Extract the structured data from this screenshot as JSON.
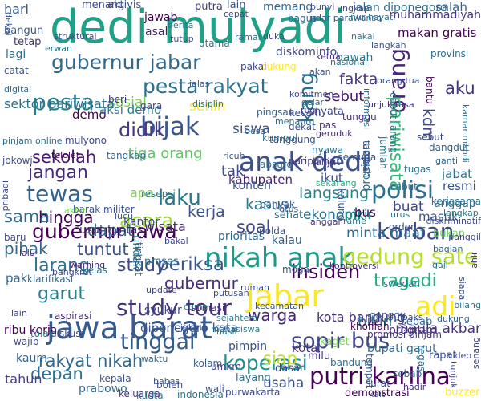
{
  "words": [
    {
      "text": "dedi mulyadi",
      "color": "#1fa187"
    },
    {
      "text": "jawa barat",
      "color": "#365c8d"
    },
    {
      "text": "nikah anak",
      "color": "#1f9a8a"
    },
    {
      "text": "gubernur jabar",
      "color": "#31688e"
    },
    {
      "text": "pesta rakyat",
      "color": "#2c728e"
    },
    {
      "text": "anak dedi",
      "color": "#3b528b"
    },
    {
      "text": "gubernur jawa",
      "color": "#440154"
    },
    {
      "text": "study tour",
      "color": "#46337e"
    },
    {
      "text": "jabar",
      "color": "#fde725"
    },
    {
      "text": "orang",
      "color": "#482677"
    },
    {
      "text": "tewas",
      "color": "#33638d"
    },
    {
      "text": "pesta",
      "color": "#277f8e"
    },
    {
      "text": "bijak",
      "color": "#38588c"
    },
    {
      "text": "didik",
      "color": "#453781"
    },
    {
      "text": "polisi",
      "color": "#2d708e"
    },
    {
      "text": "gedung sate",
      "color": "#b5de2b"
    },
    {
      "text": "korban",
      "color": "#3e4989"
    },
    {
      "text": "pariwisata",
      "color": "#35b779"
    },
    {
      "text": "sopir bus",
      "color": "#3f4788"
    },
    {
      "text": "putri karlina",
      "color": "#440154"
    },
    {
      "text": "koperasi",
      "color": "#20928c"
    },
    {
      "text": "rakyat nikah",
      "color": "#31688e"
    },
    {
      "text": "tinggal",
      "color": "#365c8d"
    },
    {
      "text": "insiden",
      "color": "#440154"
    },
    {
      "text": "tragedi",
      "color": "#26ad81"
    },
    {
      "text": "adi",
      "color": "#fde725"
    },
    {
      "text": "laku",
      "color": "#2a788e"
    },
    {
      "text": "periksa",
      "color": "#39558c"
    },
    {
      "text": "larang",
      "color": "#2c728e"
    },
    {
      "text": "study",
      "color": "#3e4989"
    },
    {
      "text": "tuntut",
      "color": "#3b528b"
    },
    {
      "text": "gubernur",
      "color": "#472d7b"
    },
    {
      "text": "garut",
      "color": "#277f8e"
    },
    {
      "text": "kang",
      "color": "#2d708e"
    },
    {
      "text": "fakta",
      "color": "#453781"
    },
    {
      "text": "aku",
      "color": "#46337e"
    },
    {
      "text": "sekolah",
      "color": "#481a6c"
    },
    {
      "text": "jangan",
      "color": "#482878"
    },
    {
      "text": "tiga orang",
      "color": "#5ec962"
    },
    {
      "text": "acara",
      "color": "#a0da39"
    },
    {
      "text": "hingga",
      "color": "#440154"
    },
    {
      "text": "dapat",
      "color": "#33638d"
    },
    {
      "text": "langsung",
      "color": "#26828e"
    },
    {
      "text": "kasus",
      "color": "#2a788e"
    },
    {
      "text": "kerja",
      "color": "#3b528b"
    },
    {
      "text": "sama",
      "color": "#31688e"
    },
    {
      "text": "siap",
      "color": "#c2df23"
    },
    {
      "text": "warga",
      "color": "#482475"
    },
    {
      "text": "soal",
      "color": "#3f4788"
    },
    {
      "text": "senin",
      "color": "#fde725"
    },
    {
      "text": "tak",
      "color": "#3e4a89"
    },
    {
      "text": "siswa",
      "color": "#39558c"
    },
    {
      "text": "ekonomi",
      "color": "#2c728e"
    },
    {
      "text": "minta maaf",
      "color": "#2e6e8e"
    },
    {
      "text": "kota bandung",
      "color": "#472d7b"
    },
    {
      "text": "usaha",
      "color": "#3b528b"
    },
    {
      "text": "maula akbar",
      "color": "#46337e"
    },
    {
      "text": "sosial",
      "color": "#7ad151"
    },
    {
      "text": "demo",
      "color": "#440154"
    },
    {
      "text": "apa",
      "color": "#7ad151"
    },
    {
      "text": "pikir",
      "color": "#20928c"
    },
    {
      "text": "sebut",
      "color": "#481a6c"
    },
    {
      "text": "kdm",
      "color": "#3e4989"
    },
    {
      "text": "bikin",
      "color": "#2d708e"
    },
    {
      "text": "depan",
      "color": "#2d708e"
    },
    {
      "text": "hari",
      "color": "#365c8d"
    },
    {
      "text": "masuk",
      "color": "#39568c"
    },
    {
      "text": "wisata",
      "color": "#482878"
    },
    {
      "text": "pihak",
      "color": "#31688e"
    },
    {
      "text": "aksi demo",
      "color": "#277f8e"
    },
    {
      "text": "bus",
      "color": "#440154"
    },
    {
      "text": "buat",
      "color": "#3e4989"
    },
    {
      "text": "makan gratis",
      "color": "#440154"
    },
    {
      "text": "kabupaten",
      "color": "#482475"
    },
    {
      "text": "bupati garut",
      "color": "#31688e"
    },
    {
      "text": "jabat",
      "color": "#2c728e"
    },
    {
      "text": "resmi",
      "color": "#39558c"
    },
    {
      "text": "presiden",
      "color": "#2e6e8e"
    },
    {
      "text": "ribu kerja",
      "color": "#440154"
    },
    {
      "text": "diponegoro kota",
      "color": "#3b528b"
    },
    {
      "text": "prioritas",
      "color": "#31688e"
    },
    {
      "text": "syukur",
      "color": "#3f4788"
    },
    {
      "text": "pak",
      "color": "#31688e"
    },
    {
      "text": "tahun",
      "color": "#433e85"
    },
    {
      "text": "kaum",
      "color": "#33638d"
    },
    {
      "text": "prabowo",
      "color": "#31688e"
    },
    {
      "text": "ikut",
      "color": "#3e4989"
    },
    {
      "text": "kota",
      "color": "#46337e"
    },
    {
      "text": "tindak",
      "color": "#2a788e"
    },
    {
      "text": "konten",
      "color": "#39568c"
    },
    {
      "text": "kalau",
      "color": "#33638d"
    },
    {
      "text": "pimpin",
      "color": "#39558c"
    },
    {
      "text": "program",
      "color": "#46337e"
    },
    {
      "text": "kantor",
      "color": "#3f4788"
    },
    {
      "text": "proses",
      "color": "#2c728e"
    },
    {
      "text": "jalan diponegoro",
      "color": "#2c728e"
    },
    {
      "text": "muhammadiyah",
      "color": "#46337e"
    },
    {
      "text": "sektor pariwisata",
      "color": "#2d708e"
    },
    {
      "text": "salah",
      "color": "#33638d"
    },
    {
      "text": "bawah",
      "color": "#2a788e"
    },
    {
      "text": "aktivis",
      "color": "#39558c"
    },
    {
      "text": "putra",
      "color": "#453781"
    },
    {
      "text": "lain",
      "color": "#3b528b"
    },
    {
      "text": "menang",
      "color": "#3e4989"
    },
    {
      "text": "memang",
      "color": "#31688e"
    },
    {
      "text": "jawab",
      "color": "#440154"
    },
    {
      "text": "asal",
      "color": "#482475"
    },
    {
      "text": "bangun",
      "color": "#39568c"
    },
    {
      "text": "tetap",
      "color": "#46337e"
    },
    {
      "text": "lagi",
      "color": "#2c728e"
    },
    {
      "text": "catat",
      "color": "#38598c"
    },
    {
      "text": "jumlah",
      "color": "#2c728e"
    },
    {
      "text": "pas",
      "color": "#472d7b"
    },
    {
      "text": "bukan",
      "color": "#6ccd5a"
    },
    {
      "text": "baru",
      "color": "#3f4788"
    },
    {
      "text": "tugas",
      "color": "#2e6e8e"
    },
    {
      "text": "anggap",
      "color": "#31688e"
    },
    {
      "text": "nyata",
      "color": "#3f4788"
    },
    {
      "text": "sehat",
      "color": "#2e6e8e"
    },
    {
      "text": "kalung",
      "color": "#39558c"
    },
    {
      "text": "beri",
      "color": "#46337e"
    },
    {
      "text": "gara",
      "color": "#3f4788"
    },
    {
      "text": "cabut",
      "color": "#31688e"
    },
    {
      "text": "umkm",
      "color": "#433e85"
    },
    {
      "text": "demonstrasi",
      "color": "#440154"
    },
    {
      "text": "rapat",
      "color": "#3b528b"
    },
    {
      "text": "ganggu",
      "color": "#38598c"
    },
    {
      "text": "kaget",
      "color": "#7ad151"
    },
    {
      "text": "sebab",
      "color": "#31688e"
    },
    {
      "text": "dasar",
      "color": "#3e4989"
    },
    {
      "text": "layang",
      "color": "#2c728e"
    },
    {
      "text": "khofifah",
      "color": "#440154"
    },
    {
      "text": "milu",
      "color": "#453781"
    },
    {
      "text": "bandung",
      "color": "#2c728e"
    },
    {
      "text": "tempat",
      "color": "#38598c"
    },
    {
      "text": "swedan",
      "color": "#2a788e"
    },
    {
      "text": "kait",
      "color": "#3b528b"
    },
    {
      "text": "sebab",
      "color": "#2e6e8e"
    },
    {
      "text": "keluarga",
      "color": "#46337e"
    },
    {
      "text": "kuota",
      "color": "#2a788e"
    },
    {
      "text": "boleh",
      "color": "#3e4989"
    },
    {
      "text": "bahas",
      "color": "#39558c"
    },
    {
      "text": "wali",
      "color": "#3b528b"
    },
    {
      "text": "kolam",
      "color": "#365c8d"
    },
    {
      "text": "somasi",
      "color": "#482878"
    },
    {
      "text": "kepala",
      "color": "#3b528b"
    },
    {
      "text": "indonesia",
      "color": "#2a788e"
    },
    {
      "text": "purwakarta",
      "color": "#3e4989"
    },
    {
      "text": "buzzer",
      "color": "#fde725"
    },
    {
      "text": "surat",
      "color": "#39558c"
    },
    {
      "text": "tegas",
      "color": "#2c728e"
    },
    {
      "text": "promosi pinjam",
      "color": "#46337e"
    },
    {
      "text": "diskusi",
      "color": "#3f4788"
    },
    {
      "text": "wajib",
      "color": "#3e4989"
    },
    {
      "text": "tolak",
      "color": "#2c728e"
    },
    {
      "text": "aspirasi",
      "color": "#482475"
    },
    {
      "text": "kelas",
      "color": "#2e6e8e"
    },
    {
      "text": "klarifikasi",
      "color": "#31688e"
    },
    {
      "text": "lalu",
      "color": "#482878"
    },
    {
      "text": "usut tuntas",
      "color": "#482878"
    },
    {
      "text": "barak militer",
      "color": "#3b528b"
    },
    {
      "text": "tingkat",
      "color": "#33638d"
    },
    {
      "text": "bakal",
      "color": "#3f4788"
    },
    {
      "text": "lucu",
      "color": "#39558c"
    },
    {
      "text": "resepsi",
      "color": "#2a788e"
    },
    {
      "text": "akhir",
      "color": "#7ad151"
    },
    {
      "text": "polda",
      "color": "#3b528b"
    },
    {
      "text": "ratus",
      "color": "#39558c"
    },
    {
      "text": "langgar",
      "color": "#453781"
    },
    {
      "text": "rame",
      "color": "#2e6e8e"
    },
    {
      "text": "hoaks",
      "color": "#3e4989"
    },
    {
      "text": "moga",
      "color": "#365c8d"
    },
    {
      "text": "kontroversi",
      "color": "#46337e"
    },
    {
      "text": "tanggung",
      "color": "#3b528b"
    },
    {
      "text": "mulyono",
      "color": "#3e4989"
    },
    {
      "text": "telolet",
      "color": "#440154"
    },
    {
      "text": "tangkap",
      "color": "#31688e"
    },
    {
      "text": "ricuh",
      "color": "#39558c"
    },
    {
      "text": "nyawa",
      "color": "#2e6e8e"
    },
    {
      "text": "lanjut",
      "color": "#3f4788"
    },
    {
      "text": "kumpul",
      "color": "#2c728e"
    },
    {
      "text": "kecam",
      "color": "#3e4989"
    },
    {
      "text": "geruduk",
      "color": "#482878"
    },
    {
      "text": "absurd",
      "color": "#2e6e8e"
    },
    {
      "text": "rugi",
      "color": "#453781"
    },
    {
      "text": "pingsan",
      "color": "#33638d"
    },
    {
      "text": "desa",
      "color": "#365c8d"
    },
    {
      "text": "paripurna",
      "color": "#453781"
    },
    {
      "text": "sekarang",
      "color": "#26ad81"
    },
    {
      "text": "jelas",
      "color": "#3b528b"
    },
    {
      "text": "diskominfo",
      "color": "#3e4989"
    },
    {
      "text": "dukung",
      "color": "#fde725"
    },
    {
      "text": "jokowi",
      "color": "#3b528b"
    },
    {
      "text": "utama",
      "color": "#2a788e"
    },
    {
      "text": "pakai",
      "color": "#3e4989"
    },
    {
      "text": "bagus",
      "color": "#2e6e8e"
    },
    {
      "text": "berita",
      "color": "#2c728e"
    },
    {
      "text": "duka",
      "color": "#3f4788"
    },
    {
      "text": "banyak",
      "color": "#38598c"
    },
    {
      "text": "order",
      "color": "#3b528b"
    },
    {
      "text": "urus",
      "color": "#2c728e"
    },
    {
      "text": "provinsi",
      "color": "#2e6e8e"
    },
    {
      "text": "tunggu",
      "color": "#482475"
    },
    {
      "text": "pemuda",
      "color": "#3b528b"
    },
    {
      "text": "dangdut",
      "color": "#33638d"
    },
    {
      "text": "sebut",
      "color": "#3e4989"
    },
    {
      "text": "kamar mandi",
      "color": "#2c728e"
    },
    {
      "text": "ganti",
      "color": "#31688e"
    },
    {
      "text": "dekat",
      "color": "#3b528b"
    },
    {
      "text": "kerjasama",
      "color": "#2a788e"
    },
    {
      "text": "lengkap",
      "color": "#2c728e"
    },
    {
      "text": "diskriminatif",
      "color": "#3e4989"
    },
    {
      "text": "cabut larang",
      "color": "#2c728e"
    },
    {
      "text": "informasi",
      "color": "#2c728e"
    },
    {
      "text": "bantu",
      "color": "#440154"
    },
    {
      "text": "tambah",
      "color": "#3b528b"
    },
    {
      "text": "unjuk rasa",
      "color": "#46337e"
    },
    {
      "text": "orang tua",
      "color": "#39558c"
    },
    {
      "text": "indar parawansa",
      "color": "#3b528b"
    },
    {
      "text": "nur hayati",
      "color": "#2a788e"
    },
    {
      "text": "ungkap",
      "color": "#3e4989"
    },
    {
      "text": "ketua",
      "color": "#482878"
    },
    {
      "text": "akan",
      "color": "#3b528b"
    },
    {
      "text": "komitmen",
      "color": "#3e4989"
    },
    {
      "text": "nasional",
      "color": "#2c728e"
    },
    {
      "text": "pribadi",
      "color": "#3e4989"
    },
    {
      "text": "warning",
      "color": "#482475"
    },
    {
      "text": "bangkrut",
      "color": "#3e4989"
    },
    {
      "text": "panggil",
      "color": "#3f4788"
    },
    {
      "text": "ahli",
      "color": "#453781"
    },
    {
      "text": "disiplin",
      "color": "#2a788e"
    },
    {
      "text": "menantu",
      "color": "#31688e"
    },
    {
      "text": "gelar",
      "color": "#2e6e8e"
    },
    {
      "text": "kecamatan",
      "color": "#39558c"
    },
    {
      "text": "putusan",
      "color": "#3b528b"
    },
    {
      "text": "mahasiswa",
      "color": "#2a788e"
    },
    {
      "text": "rumah",
      "color": "#3e4989"
    },
    {
      "text": "sejahtera",
      "color": "#2a788e"
    },
    {
      "text": "hasil",
      "color": "#2c728e"
    },
    {
      "text": "bagian",
      "color": "#33638d"
    },
    {
      "text": "tunjuk",
      "color": "#3e4989"
    },
    {
      "text": "senang",
      "color": "#3e4989"
    },
    {
      "text": "bilang",
      "color": "#2c728e"
    },
    {
      "text": "dukung",
      "color": "#33638d"
    },
    {
      "text": "hadir",
      "color": "#482878"
    },
    {
      "text": "siapa",
      "color": "#39558c"
    },
    {
      "text": "gaji",
      "color": "#2c728e"
    },
    {
      "text": "video",
      "color": "#3e4989"
    },
    {
      "text": "cuma",
      "color": "#2a788e"
    },
    {
      "text": "update",
      "color": "#3f4788"
    },
    {
      "text": "jelang",
      "color": "#3b528b"
    },
    {
      "text": "waktu",
      "color": "#31688e"
    },
    {
      "text": "cepat",
      "color": "#3e4989"
    },
    {
      "text": "ramai",
      "color": "#2e6e8e"
    },
    {
      "text": "bunyi",
      "color": "#3b528b"
    },
    {
      "text": "nakal",
      "color": "#2a788e"
    },
    {
      "text": "langkah",
      "color": "#3b528b"
    },
    {
      "text": "tutup",
      "color": "#39558c"
    },
    {
      "text": "struktural",
      "color": "#3e4989"
    },
    {
      "text": "digital",
      "color": "#31688e"
    },
    {
      "text": "pinjam online",
      "color": "#2c728e"
    },
    {
      "text": "erwan",
      "color": "#2a788e"
    },
    {
      "text": "dekat",
      "color": "#39558c"
    },
    {
      "text": "lain",
      "color": "#3e4989"
    },
    {
      "text": "rumah sakit",
      "color": "#2c728e"
    },
    {
      "text": "kata",
      "color": "#3f4788"
    },
    {
      "text": "sidang",
      "color": "#2a788e"
    },
    {
      "text": "turut",
      "color": "#3b528b"
    },
    {
      "text": "full",
      "color": "#39558c"
    },
    {
      "text": "tolong",
      "color": "#3e4989"
    }
  ]
}
